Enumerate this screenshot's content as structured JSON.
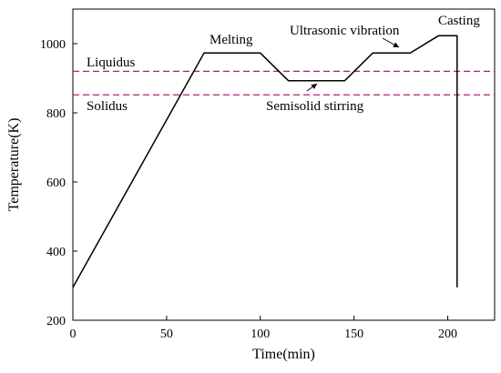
{
  "chart_data": {
    "type": "line",
    "xlabel": "Time(min)",
    "ylabel": "Temperature(K)",
    "xlim": [
      0,
      225
    ],
    "ylim": [
      200,
      1100
    ],
    "xticks": [
      0,
      50,
      100,
      150,
      200
    ],
    "yticks": [
      200,
      400,
      600,
      800,
      1000
    ],
    "grid": false,
    "legend": "none",
    "series": [
      {
        "color": "#000000",
        "x": [
          0,
          70,
          100,
          115,
          145,
          160,
          180,
          195,
          205,
          205
        ],
        "y": [
          295,
          973,
          973,
          893,
          893,
          973,
          973,
          1023,
          1023,
          295
        ]
      }
    ],
    "reference_lines": [
      {
        "label": "Liquidus",
        "y": 920,
        "color": "#b0207a",
        "style": "dashed"
      },
      {
        "label": "Solidus",
        "y": 852,
        "color": "#b0207a",
        "style": "dashed"
      }
    ],
    "annotations": [
      {
        "text": "Melting",
        "x": 85,
        "y": 1010
      },
      {
        "text": "Ultrasonic vibration",
        "x": 145,
        "y": 1038
      },
      {
        "text": "Semisolid stirring",
        "x": 140,
        "y": 830
      },
      {
        "text": "Casting",
        "x": 210,
        "y": 1058
      }
    ]
  }
}
